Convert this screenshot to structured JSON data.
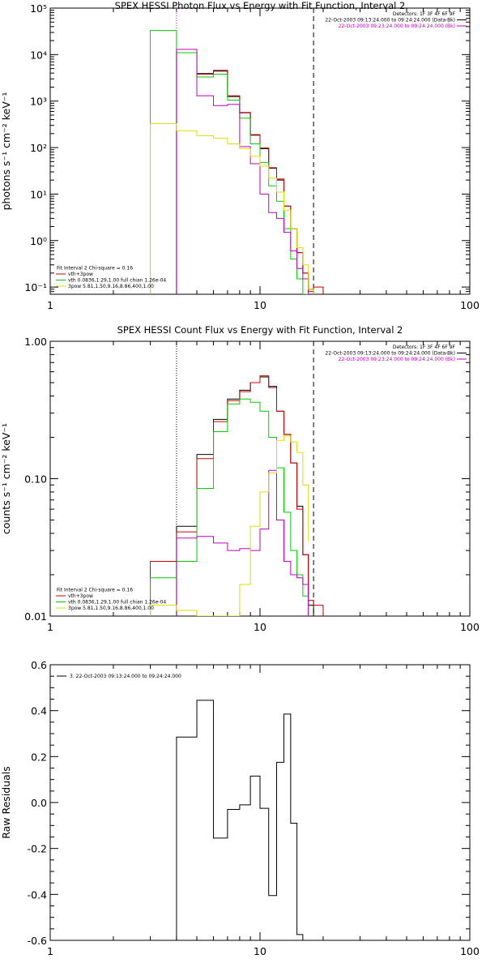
{
  "chart_data": [
    {
      "type": "line",
      "title": "SPEX HESSI Photon Flux vs Energy with Fit Function, Interval 2",
      "ylabel": "photons s⁻¹ cm⁻² keV⁻¹",
      "xlabel": "",
      "xscale": "log",
      "yscale": "log",
      "xlim": [
        1,
        100
      ],
      "ylim": [
        0.07,
        100000
      ],
      "x_ticks": [
        1,
        10,
        100
      ],
      "x_tick_labels": [
        "1",
        "10",
        "100"
      ],
      "y_ticks": [
        0.1,
        1,
        10,
        100,
        1000,
        10000,
        100000
      ],
      "y_tick_labels": [
        "10⁻¹",
        "10⁰",
        "10¹",
        "10²",
        "10³",
        "10⁴",
        "10⁵"
      ],
      "vlines": [
        {
          "x": 4,
          "style": "dotted",
          "color": "#c000c0"
        },
        {
          "x": 18,
          "style": "dashed",
          "color": "#000000"
        }
      ],
      "legend_top_right": [
        {
          "text": "Detectors: 1F 3F 4F 6F 9F",
          "color": "#000000"
        },
        {
          "text": "22-Oct-2003 09:13:24.000 to 09:24:24.000 (Data-Bk)",
          "color": "#000000"
        },
        {
          "text": "22-Oct-2003 09:23:24.000 to 09:24:24.000 (Bk)",
          "color": "#c000c0"
        }
      ],
      "legend_bottom_left": [
        {
          "text": "Fit Interval 2   Chi-square = 0.16",
          "color": "#000000"
        },
        {
          "text": "vth+3pow",
          "color": "#cc0000"
        },
        {
          "text": "vth 0.0836,1.29,1.00  full chian 1.26e-04",
          "color": "#00cc00"
        },
        {
          "text": "3pow 5.81,1.50,9.16,8.86,400,1.00",
          "color": "#dddd00"
        }
      ],
      "series": [
        {
          "color": "#000000",
          "edges": [
            4,
            5,
            6,
            7,
            8,
            9,
            10,
            11,
            12,
            13,
            14,
            15,
            16,
            17,
            18
          ],
          "values": [
            11000,
            3900,
            4400,
            1250,
            560,
            185,
            95,
            36,
            20,
            5.5,
            1.8,
            0.55,
            0.2,
            0.09
          ]
        },
        {
          "color": "#cc0000",
          "edges": [
            4,
            5,
            6,
            7,
            8,
            9,
            10,
            11,
            12,
            13,
            14,
            15,
            16,
            17,
            18,
            20
          ],
          "values": [
            11000,
            3800,
            4600,
            1300,
            570,
            190,
            98,
            37,
            21,
            5.5,
            1.8,
            0.55,
            0.2,
            0.08,
            0.1
          ]
        },
        {
          "color": "#00cc00",
          "edges": [
            3,
            4,
            5,
            6,
            7,
            8,
            9,
            10,
            11,
            12,
            13,
            14,
            15,
            16,
            17
          ],
          "values": [
            33000,
            11000,
            3300,
            3800,
            1050,
            430,
            120,
            48,
            15,
            7,
            1.8,
            0.4,
            0.15,
            0.07
          ]
        },
        {
          "color": "#c000c0",
          "edges": [
            4,
            5,
            6,
            7,
            8,
            9,
            10,
            11,
            12,
            13,
            14,
            15,
            16,
            17
          ],
          "values": [
            13000,
            1300,
            800,
            850,
            105,
            45,
            10,
            4,
            3,
            1.5,
            0.6,
            0.25,
            0.15
          ]
        },
        {
          "color": "#dddd00",
          "edges": [
            3,
            4,
            5,
            6,
            7,
            8,
            9,
            10,
            11,
            12,
            13,
            14,
            15,
            16,
            17,
            18
          ],
          "values": [
            330,
            230,
            180,
            160,
            120,
            95,
            65,
            40,
            22,
            11,
            4.5,
            1.8,
            0.7,
            0.3,
            0.09
          ]
        }
      ]
    },
    {
      "type": "line",
      "title": "SPEX HESSI Count Flux vs Energy with Fit Function, Interval 2",
      "ylabel": "counts s⁻¹ cm⁻² keV⁻¹",
      "xlabel": "",
      "xscale": "log",
      "yscale": "log",
      "xlim": [
        1,
        100
      ],
      "ylim": [
        0.01,
        1
      ],
      "x_ticks": [
        1,
        10,
        100
      ],
      "x_tick_labels": [
        "1",
        "10",
        "100"
      ],
      "y_ticks": [
        0.01,
        0.1,
        1
      ],
      "y_tick_labels": [
        "0.01",
        "0.10",
        "1.00"
      ],
      "vlines": [
        {
          "x": 4,
          "style": "dotted",
          "color": "#000000"
        },
        {
          "x": 18,
          "style": "dashed",
          "color": "#000000"
        }
      ],
      "legend_top_right": [
        {
          "text": "Detectors: 1F 3F 4F 6F 9F",
          "color": "#000000"
        },
        {
          "text": "22-Oct-2003 09:13:24.000 to 09:24:24.000 (Data-Bk)",
          "color": "#000000"
        },
        {
          "text": "22-Oct-2003 09:23:24.000 to 09:24:24.000 (Bk)",
          "color": "#c000c0"
        }
      ],
      "legend_bottom_left": [
        {
          "text": "Fit Interval 2   Chi-square = 0.16",
          "color": "#000000"
        },
        {
          "text": "vth+3pow",
          "color": "#cc0000"
        },
        {
          "text": "vth 0.0836,1.29,1.00  full chian 1.26e-04",
          "color": "#00cc00"
        },
        {
          "text": "3pow 5.81,1.50,9.16,8.86,400,1.00",
          "color": "#dddd00"
        }
      ],
      "series": [
        {
          "color": "#000000",
          "edges": [
            4,
            5,
            6,
            7,
            8,
            9,
            10,
            11,
            12,
            13,
            14,
            15,
            16,
            17,
            18
          ],
          "values": [
            0.045,
            0.15,
            0.27,
            0.38,
            0.44,
            0.5,
            0.55,
            0.47,
            0.31,
            0.21,
            0.13,
            0.063,
            0.028,
            0.012
          ]
        },
        {
          "color": "#cc0000",
          "edges": [
            3,
            4,
            5,
            6,
            7,
            8,
            9,
            10,
            11,
            12,
            13,
            14,
            15,
            16,
            17,
            18,
            20
          ],
          "values": [
            0.025,
            0.041,
            0.14,
            0.26,
            0.37,
            0.43,
            0.5,
            0.56,
            0.46,
            0.31,
            0.21,
            0.13,
            0.06,
            0.028,
            0.013,
            0.012
          ]
        },
        {
          "color": "#00cc00",
          "edges": [
            3,
            4,
            5,
            6,
            7,
            8,
            9,
            10,
            11,
            12,
            13,
            14,
            15,
            16,
            17
          ],
          "values": [
            0.019,
            0.025,
            0.085,
            0.22,
            0.35,
            0.38,
            0.36,
            0.31,
            0.2,
            0.12,
            0.057,
            0.03,
            0.02,
            0.014
          ]
        },
        {
          "color": "#c000c0",
          "edges": [
            4,
            5,
            6,
            7,
            8,
            9,
            10,
            11,
            12,
            13,
            14,
            15,
            16,
            17
          ],
          "values": [
            0.037,
            0.038,
            0.034,
            0.03,
            0.031,
            0.03,
            0.043,
            0.115,
            0.05,
            0.025,
            0.02,
            0.019,
            0.017
          ]
        },
        {
          "color": "#dddd00",
          "edges": [
            3,
            4,
            5,
            6,
            7,
            8,
            9,
            10,
            11,
            12,
            13,
            14,
            15,
            16,
            17
          ],
          "values": [
            0.012,
            0.011,
            0.01,
            0.01,
            0.01,
            0.017,
            0.045,
            0.08,
            0.11,
            0.19,
            0.205,
            0.185,
            0.155,
            0.09,
            0.035
          ]
        }
      ]
    },
    {
      "type": "line",
      "title": "",
      "ylabel": "Raw Residuals",
      "xlabel": "",
      "xscale": "log",
      "yscale": "linear",
      "xlim": [
        1,
        100
      ],
      "ylim": [
        -0.6,
        0.6
      ],
      "x_ticks": [
        1,
        10,
        100
      ],
      "x_tick_labels": [
        "1",
        "10",
        "100"
      ],
      "y_ticks": [
        -0.6,
        -0.4,
        -0.2,
        0.0,
        0.2,
        0.4,
        0.6
      ],
      "y_tick_labels": [
        "-0.6",
        "-0.4",
        "-0.2",
        "0.0",
        "0.2",
        "0.4",
        "0.6"
      ],
      "legend_top_left": [
        {
          "text": "3. 22-Oct-2003 09:13:24.000 to 09:24:24.000",
          "color": "#000000"
        }
      ],
      "series": [
        {
          "color": "#000000",
          "edges": [
            4,
            5,
            6,
            7,
            8,
            9,
            10,
            11,
            12,
            13,
            14,
            15,
            16,
            17,
            18
          ],
          "values": [
            0.285,
            0.445,
            -0.155,
            -0.03,
            -0.01,
            0.115,
            -0.025,
            -0.405,
            0.175,
            0.385,
            -0.09,
            -0.575,
            -0.6,
            -0.6
          ]
        }
      ]
    }
  ]
}
